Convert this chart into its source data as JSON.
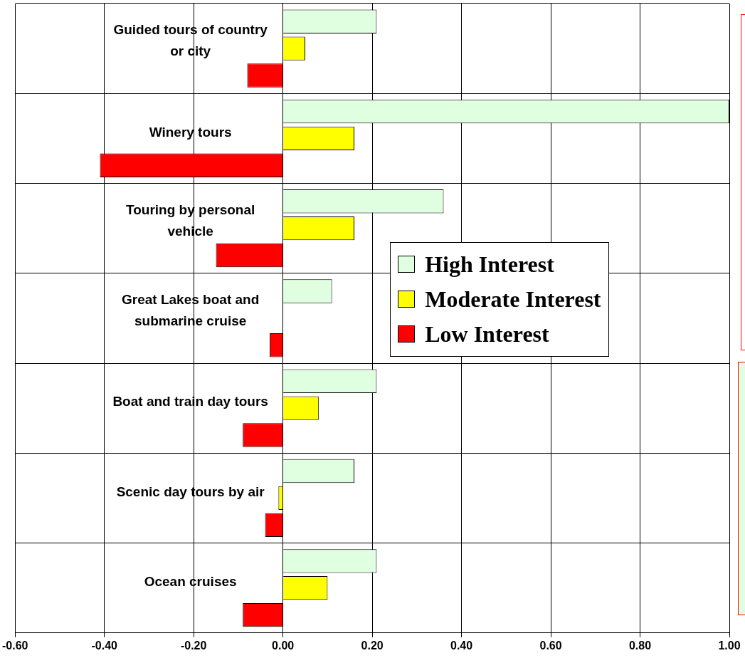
{
  "chart_data": {
    "type": "bar",
    "orientation": "horizontal",
    "categories": [
      "Guided tours of country or city",
      "Winery tours",
      "Touring by personal vehicle",
      "Great Lakes boat and submarine cruise",
      "Boat and train day tours",
      "Scenic day tours by air",
      "Ocean cruises"
    ],
    "series": [
      {
        "name": "High Interest",
        "color": "#e0ffe0",
        "values": [
          0.21,
          1.0,
          0.36,
          0.11,
          0.21,
          0.16,
          0.21
        ]
      },
      {
        "name": "Moderate Interest",
        "color": "#ffff00",
        "values": [
          0.05,
          0.16,
          0.16,
          null,
          0.08,
          -0.01,
          0.1
        ]
      },
      {
        "name": "Low Interest",
        "color": "#ff0000",
        "values": [
          -0.08,
          -0.41,
          -0.15,
          -0.03,
          -0.09,
          -0.04,
          -0.09
        ]
      }
    ],
    "xlim": [
      -0.6,
      1.0
    ],
    "xticks": [
      {
        "value": -0.6,
        "label": "-0.60"
      },
      {
        "value": -0.4,
        "label": "-0.40"
      },
      {
        "value": -0.2,
        "label": "-0.20"
      },
      {
        "value": 0,
        "label": "0.00"
      },
      {
        "value": 0.2,
        "label": "0.20"
      },
      {
        "value": 0.4,
        "label": "0.40"
      },
      {
        "value": 0.6,
        "label": "0.60"
      },
      {
        "value": 0.8,
        "label": "0.80"
      },
      {
        "value": 1.0,
        "label": "1.00"
      }
    ],
    "grid": true,
    "legend": "right"
  }
}
